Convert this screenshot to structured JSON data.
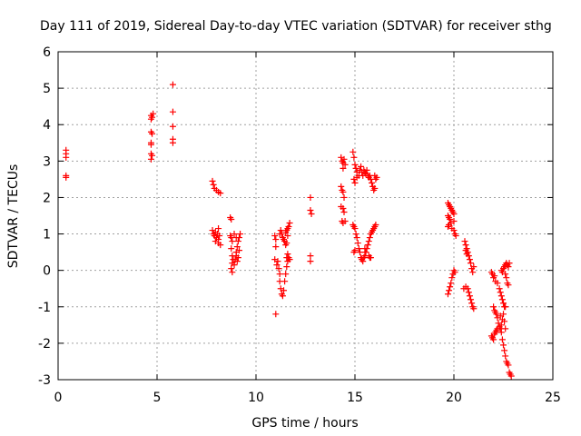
{
  "chart_data": {
    "type": "scatter",
    "title": "Day 111 of 2019, Sidereal Day-to-day VTEC variation (SDTVAR) for receiver sthg",
    "xlabel": "GPS time / hours",
    "ylabel": "SDTVAR / TECUs",
    "xlim": [
      0,
      25
    ],
    "ylim": [
      -3,
      6
    ],
    "xticks": [
      0,
      5,
      10,
      15,
      20,
      25
    ],
    "yticks": [
      -3,
      -2,
      -1,
      0,
      1,
      2,
      3,
      4,
      5,
      6
    ],
    "grid": true,
    "marker": "+",
    "series": [
      {
        "name": "SDTVAR",
        "color": "#ff0000",
        "points": [
          [
            0.4,
            3.3
          ],
          [
            0.4,
            3.2
          ],
          [
            0.4,
            3.1
          ],
          [
            0.4,
            2.6
          ],
          [
            0.4,
            2.55
          ],
          [
            4.7,
            4.25
          ],
          [
            4.75,
            4.2
          ],
          [
            4.7,
            4.15
          ],
          [
            4.8,
            4.3
          ],
          [
            4.7,
            3.8
          ],
          [
            4.75,
            3.75
          ],
          [
            4.7,
            3.5
          ],
          [
            4.7,
            3.45
          ],
          [
            4.7,
            3.2
          ],
          [
            4.75,
            3.15
          ],
          [
            4.7,
            3.05
          ],
          [
            5.8,
            5.1
          ],
          [
            5.8,
            4.35
          ],
          [
            5.8,
            3.95
          ],
          [
            5.8,
            3.6
          ],
          [
            5.8,
            3.5
          ],
          [
            7.8,
            2.45
          ],
          [
            7.85,
            2.35
          ],
          [
            7.9,
            2.25
          ],
          [
            8.0,
            2.2
          ],
          [
            8.1,
            2.15
          ],
          [
            8.2,
            2.12
          ],
          [
            7.8,
            1.1
          ],
          [
            7.85,
            1.0
          ],
          [
            7.9,
            0.95
          ],
          [
            7.95,
            1.05
          ],
          [
            8.0,
            0.9
          ],
          [
            8.05,
            1.0
          ],
          [
            8.1,
            0.85
          ],
          [
            8.15,
            0.95
          ],
          [
            8.1,
            0.75
          ],
          [
            8.2,
            0.7
          ],
          [
            8.1,
            1.15
          ],
          [
            7.95,
            0.8
          ],
          [
            8.7,
            1.45
          ],
          [
            8.75,
            1.4
          ],
          [
            8.7,
            0.95
          ],
          [
            8.75,
            0.9
          ],
          [
            8.8,
            0.8
          ],
          [
            8.75,
            0.6
          ],
          [
            8.8,
            0.4
          ],
          [
            8.85,
            0.3
          ],
          [
            8.8,
            0.2
          ],
          [
            8.75,
            0.05
          ],
          [
            8.8,
            -0.05
          ],
          [
            8.9,
            0.15
          ],
          [
            8.95,
            0.3
          ],
          [
            9.0,
            0.5
          ],
          [
            9.05,
            0.65
          ],
          [
            9.1,
            0.8
          ],
          [
            9.15,
            0.9
          ],
          [
            9.2,
            1.0
          ],
          [
            9.0,
            0.4
          ],
          [
            9.05,
            0.25
          ],
          [
            9.1,
            0.35
          ],
          [
            9.15,
            0.55
          ],
          [
            8.9,
            1.0
          ],
          [
            9.0,
            0.9
          ],
          [
            11.0,
            -1.2
          ],
          [
            10.95,
            0.95
          ],
          [
            11.0,
            0.85
          ],
          [
            11.0,
            0.65
          ],
          [
            10.95,
            0.3
          ],
          [
            11.05,
            0.15
          ],
          [
            11.1,
            0.25
          ],
          [
            11.15,
            0.05
          ],
          [
            11.2,
            -0.1
          ],
          [
            11.2,
            -0.3
          ],
          [
            11.25,
            -0.5
          ],
          [
            11.3,
            -0.65
          ],
          [
            11.35,
            -0.7
          ],
          [
            11.4,
            -0.55
          ],
          [
            11.45,
            -0.3
          ],
          [
            11.5,
            -0.1
          ],
          [
            11.55,
            0.1
          ],
          [
            11.6,
            0.25
          ],
          [
            11.65,
            0.35
          ],
          [
            11.7,
            0.3
          ],
          [
            11.55,
            0.35
          ],
          [
            11.6,
            0.45
          ],
          [
            11.2,
            1.0
          ],
          [
            11.25,
            1.1
          ],
          [
            11.3,
            1.0
          ],
          [
            11.35,
            0.9
          ],
          [
            11.4,
            0.85
          ],
          [
            11.45,
            0.8
          ],
          [
            11.5,
            0.7
          ],
          [
            11.55,
            0.75
          ],
          [
            11.5,
            1.05
          ],
          [
            11.55,
            1.1
          ],
          [
            11.6,
            1.15
          ],
          [
            11.65,
            1.2
          ],
          [
            11.7,
            1.3
          ],
          [
            11.6,
            0.95
          ],
          [
            12.75,
            2.0
          ],
          [
            12.75,
            1.65
          ],
          [
            12.8,
            1.55
          ],
          [
            12.75,
            0.4
          ],
          [
            12.75,
            0.25
          ],
          [
            14.3,
            3.1
          ],
          [
            14.35,
            3.0
          ],
          [
            14.4,
            2.95
          ],
          [
            14.45,
            3.05
          ],
          [
            14.5,
            2.9
          ],
          [
            14.4,
            2.8
          ],
          [
            14.3,
            2.3
          ],
          [
            14.35,
            2.2
          ],
          [
            14.4,
            2.15
          ],
          [
            14.45,
            2.0
          ],
          [
            14.3,
            1.75
          ],
          [
            14.4,
            1.7
          ],
          [
            14.45,
            1.6
          ],
          [
            14.35,
            1.35
          ],
          [
            14.4,
            1.3
          ],
          [
            14.5,
            1.35
          ],
          [
            14.9,
            3.25
          ],
          [
            14.95,
            3.1
          ],
          [
            15.0,
            2.9
          ],
          [
            15.05,
            2.8
          ],
          [
            15.1,
            2.7
          ],
          [
            14.95,
            2.5
          ],
          [
            15.0,
            2.4
          ],
          [
            15.1,
            2.55
          ],
          [
            15.2,
            2.6
          ],
          [
            15.25,
            2.75
          ],
          [
            15.3,
            2.85
          ],
          [
            15.35,
            2.7
          ],
          [
            15.4,
            2.6
          ],
          [
            15.45,
            2.75
          ],
          [
            15.5,
            2.7
          ],
          [
            15.55,
            2.65
          ],
          [
            15.6,
            2.75
          ],
          [
            15.65,
            2.6
          ],
          [
            15.7,
            2.55
          ],
          [
            15.75,
            2.6
          ],
          [
            15.8,
            2.5
          ],
          [
            15.85,
            2.4
          ],
          [
            15.9,
            2.3
          ],
          [
            15.95,
            2.2
          ],
          [
            16.0,
            2.25
          ],
          [
            16.05,
            2.5
          ],
          [
            16.1,
            2.55
          ],
          [
            16.0,
            2.6
          ],
          [
            14.9,
            1.25
          ],
          [
            14.95,
            1.2
          ],
          [
            15.0,
            1.15
          ],
          [
            15.05,
            1.0
          ],
          [
            15.1,
            0.9
          ],
          [
            15.15,
            0.75
          ],
          [
            15.0,
            0.55
          ],
          [
            14.95,
            0.5
          ],
          [
            15.2,
            0.6
          ],
          [
            15.25,
            0.5
          ],
          [
            15.3,
            0.35
          ],
          [
            15.35,
            0.3
          ],
          [
            15.4,
            0.25
          ],
          [
            15.45,
            0.35
          ],
          [
            15.5,
            0.4
          ],
          [
            15.55,
            0.5
          ],
          [
            15.6,
            0.6
          ],
          [
            15.65,
            0.7
          ],
          [
            15.7,
            0.8
          ],
          [
            15.75,
            0.9
          ],
          [
            15.8,
            1.0
          ],
          [
            15.85,
            1.05
          ],
          [
            15.9,
            1.1
          ],
          [
            15.95,
            1.15
          ],
          [
            16.0,
            1.2
          ],
          [
            16.05,
            1.25
          ],
          [
            15.7,
            0.4
          ],
          [
            15.75,
            0.35
          ],
          [
            15.8,
            0.35
          ],
          [
            15.5,
            0.6
          ],
          [
            19.7,
            1.85
          ],
          [
            19.75,
            1.8
          ],
          [
            19.8,
            1.75
          ],
          [
            19.85,
            1.7
          ],
          [
            19.9,
            1.65
          ],
          [
            19.95,
            1.6
          ],
          [
            20.0,
            1.55
          ],
          [
            19.7,
            1.5
          ],
          [
            19.75,
            1.45
          ],
          [
            19.8,
            1.4
          ],
          [
            19.85,
            1.3
          ],
          [
            19.7,
            1.2
          ],
          [
            19.75,
            1.25
          ],
          [
            19.9,
            1.15
          ],
          [
            20.0,
            1.1
          ],
          [
            20.05,
            1.0
          ],
          [
            20.1,
            0.95
          ],
          [
            20.0,
            1.35
          ],
          [
            19.7,
            -0.65
          ],
          [
            19.75,
            -0.55
          ],
          [
            19.8,
            -0.45
          ],
          [
            19.85,
            -0.35
          ],
          [
            19.9,
            -0.2
          ],
          [
            19.95,
            -0.1
          ],
          [
            20.0,
            0.0
          ],
          [
            20.05,
            -0.05
          ],
          [
            20.55,
            0.8
          ],
          [
            20.6,
            0.7
          ],
          [
            20.65,
            0.6
          ],
          [
            20.7,
            0.5
          ],
          [
            20.75,
            0.4
          ],
          [
            20.8,
            0.3
          ],
          [
            20.85,
            0.2
          ],
          [
            20.9,
            0.05
          ],
          [
            20.95,
            -0.05
          ],
          [
            21.0,
            0.1
          ],
          [
            20.6,
            0.55
          ],
          [
            20.65,
            0.45
          ],
          [
            20.5,
            -0.5
          ],
          [
            20.6,
            -0.45
          ],
          [
            20.7,
            -0.5
          ],
          [
            20.75,
            -0.6
          ],
          [
            20.8,
            -0.7
          ],
          [
            20.85,
            -0.8
          ],
          [
            20.9,
            -0.9
          ],
          [
            20.95,
            -1.0
          ],
          [
            21.0,
            -1.05
          ],
          [
            21.9,
            -0.05
          ],
          [
            21.95,
            -0.1
          ],
          [
            22.0,
            -0.2
          ],
          [
            22.05,
            -0.15
          ],
          [
            22.1,
            -0.3
          ],
          [
            22.2,
            -0.35
          ],
          [
            22.3,
            -0.5
          ],
          [
            22.35,
            -0.6
          ],
          [
            22.4,
            -0.7
          ],
          [
            22.45,
            -0.8
          ],
          [
            22.5,
            -0.9
          ],
          [
            22.55,
            -1.0
          ],
          [
            22.0,
            -1.0
          ],
          [
            22.05,
            -1.1
          ],
          [
            22.1,
            -1.15
          ],
          [
            22.15,
            -1.2
          ],
          [
            22.2,
            -1.3
          ],
          [
            22.25,
            -1.45
          ],
          [
            21.9,
            -1.8
          ],
          [
            21.95,
            -1.85
          ],
          [
            22.0,
            -1.9
          ],
          [
            22.05,
            -1.75
          ],
          [
            22.1,
            -1.7
          ],
          [
            22.15,
            -1.65
          ],
          [
            22.2,
            -1.6
          ],
          [
            22.3,
            -1.55
          ],
          [
            22.35,
            -1.6
          ],
          [
            22.4,
            -1.7
          ],
          [
            22.45,
            -1.9
          ],
          [
            22.5,
            -2.05
          ],
          [
            22.55,
            -2.2
          ],
          [
            22.6,
            -2.35
          ],
          [
            22.65,
            -2.5
          ],
          [
            22.7,
            -2.55
          ],
          [
            22.75,
            -2.6
          ],
          [
            22.8,
            -2.8
          ],
          [
            22.85,
            -2.85
          ],
          [
            22.9,
            -2.9
          ],
          [
            22.4,
            0.0
          ],
          [
            22.45,
            -0.05
          ],
          [
            22.5,
            0.05
          ],
          [
            22.55,
            0.1
          ],
          [
            22.6,
            0.15
          ],
          [
            22.65,
            0.2
          ],
          [
            22.7,
            0.15
          ],
          [
            22.75,
            0.1
          ],
          [
            22.8,
            0.2
          ],
          [
            22.6,
            -0.1
          ],
          [
            22.65,
            -0.2
          ],
          [
            22.7,
            -0.35
          ],
          [
            22.75,
            -0.4
          ],
          [
            22.6,
            -1.0
          ],
          [
            22.5,
            -1.2
          ],
          [
            22.45,
            -1.35
          ],
          [
            22.4,
            -1.5
          ],
          [
            22.35,
            -1.25
          ],
          [
            22.55,
            -1.4
          ],
          [
            22.6,
            -1.6
          ]
        ]
      }
    ]
  }
}
